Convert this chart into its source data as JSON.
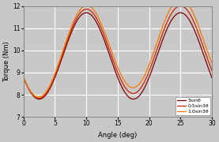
{
  "title": "",
  "xlabel": "Angle (deg)",
  "ylabel": "Torque (Nm)",
  "xlim": [
    0,
    30
  ],
  "ylim": [
    7,
    12
  ],
  "yticks": [
    7,
    8,
    9,
    10,
    11,
    12
  ],
  "xticks": [
    0,
    5,
    10,
    15,
    20,
    25,
    30
  ],
  "background_color": "#c8c8c8",
  "grid_color": "#ffffff",
  "legend_labels": [
    "5sinθ",
    "0.5sin3θ",
    "1.0sin3θ"
  ],
  "legend_colors": [
    "#7f0000",
    "#cc2200",
    "#ff7700"
  ],
  "fig_bg": "#c8c8c8",
  "base_A": 9.75,
  "base_B": 1.95,
  "base_period_deg": 15.0,
  "base_peak_deg": 10.0,
  "perturb_0": 0.0,
  "perturb_1": 0.32,
  "perturb_2": 0.65,
  "perturb_freq_mult": 3
}
